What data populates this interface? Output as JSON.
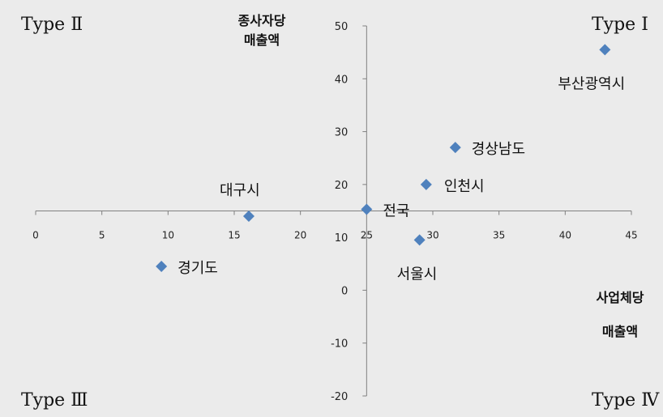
{
  "colors": {
    "background": "#ebebeb",
    "axis": "#808080",
    "marker": "#4f81bd",
    "text": "#111111"
  },
  "quadrants": {
    "type1": "Type Ⅰ",
    "type2": "Type Ⅱ",
    "type3": "Type Ⅲ",
    "type4": "Type Ⅳ"
  },
  "chart_data": {
    "type": "scatter",
    "xlabel": [
      "사업체당",
      "매출액"
    ],
    "ylabel": [
      "종사자당",
      "매출액"
    ],
    "xlim": [
      0,
      45
    ],
    "ylim": [
      -20,
      50
    ],
    "x_ticks": [
      0,
      5,
      10,
      15,
      20,
      25,
      30,
      35,
      40,
      45
    ],
    "y_ticks": [
      -20,
      -10,
      0,
      10,
      20,
      30,
      40,
      50
    ],
    "x_axis_crosses_y_at": 15,
    "y_axis_crosses_x_at": 25,
    "grid": false,
    "points": [
      {
        "label": "부산광역시",
        "x": 43.0,
        "y": 45.5
      },
      {
        "label": "경상남도",
        "x": 31.7,
        "y": 27.0
      },
      {
        "label": "인천시",
        "x": 29.5,
        "y": 20.0
      },
      {
        "label": "전국",
        "x": 25.0,
        "y": 15.3
      },
      {
        "label": "서울시",
        "x": 29.0,
        "y": 9.5
      },
      {
        "label": "대구시",
        "x": 16.1,
        "y": 14.0
      },
      {
        "label": "경기도",
        "x": 9.5,
        "y": 4.5
      }
    ]
  }
}
